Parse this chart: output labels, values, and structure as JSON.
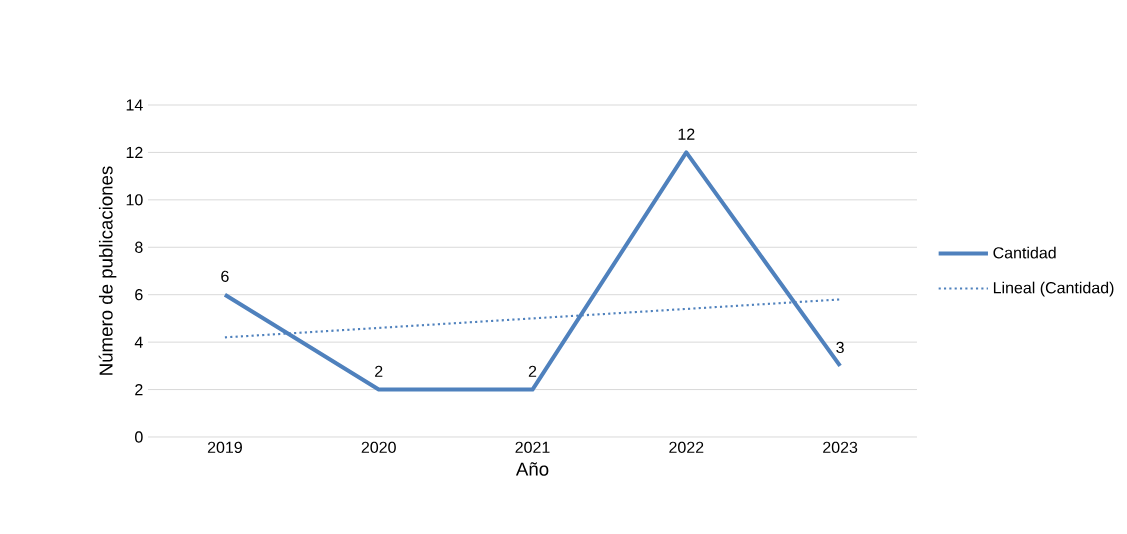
{
  "chart_data": {
    "type": "line",
    "xlabel": "Año",
    "ylabel": "Número de publicaciones",
    "categories": [
      "2019",
      "2020",
      "2021",
      "2022",
      "2023"
    ],
    "series": [
      {
        "name": "Cantidad",
        "color": "#4f81bd",
        "values": [
          6,
          2,
          2,
          12,
          3
        ],
        "value_labels": [
          "6",
          "2",
          "2",
          "12",
          "3"
        ],
        "line_style": "solid"
      },
      {
        "name": "Lineal (Cantidad)",
        "color": "#4f81bd",
        "values": [
          4.2,
          4.6,
          5.0,
          5.4,
          5.8
        ],
        "line_style": "dotted"
      }
    ],
    "ylim": [
      0,
      14
    ],
    "yticks": [
      0,
      2,
      4,
      6,
      8,
      10,
      12,
      14
    ],
    "grid": "y",
    "legend": "right",
    "marker": "none"
  }
}
